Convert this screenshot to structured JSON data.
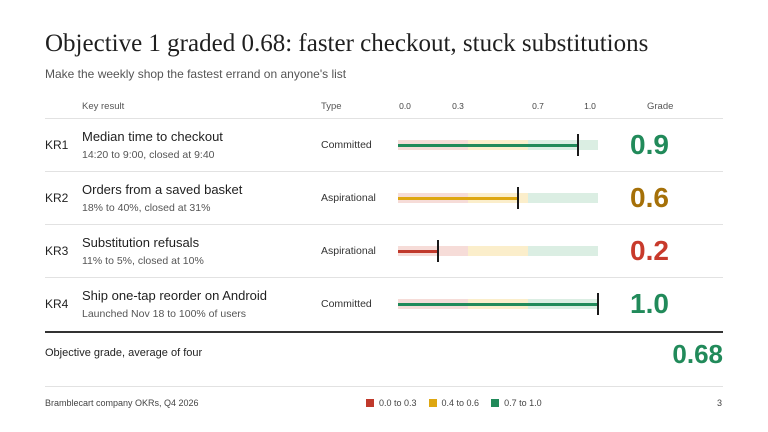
{
  "header": {
    "title": "Objective 1 graded 0.68: faster checkout, stuck substitutions",
    "subtitle": "Make the weekly shop the fastest errand on anyone's list"
  },
  "columns": {
    "key_result": "Key result",
    "type": "Type",
    "grade": "Grade",
    "scale_ticks": [
      "0.0",
      "0.3",
      "0.7",
      "1.0"
    ]
  },
  "colors": {
    "red": "#c0392b",
    "amber": "#dea711",
    "green": "#218a5a",
    "band_red": "#f6dcd8",
    "band_amber": "#fbeecb",
    "band_green": "#dbeee3",
    "grade_red": "#c83a2b",
    "grade_amber": "#a57008",
    "grade_green": "#218a5a"
  },
  "key_results": [
    {
      "id": "KR1",
      "name": "Median time to checkout",
      "detail": "14:20 to 9:00, closed at 9:40",
      "type": "Committed",
      "grade": "0.9",
      "score": 0.9,
      "tier": "green"
    },
    {
      "id": "KR2",
      "name": "Orders from a saved basket",
      "detail": "18% to 40%, closed at 31%",
      "type": "Aspirational",
      "grade": "0.6",
      "score": 0.6,
      "tier": "amber"
    },
    {
      "id": "KR3",
      "name": "Substitution refusals",
      "detail": "11% to 5%, closed at 10%",
      "type": "Aspirational",
      "grade": "0.2",
      "score": 0.2,
      "tier": "red"
    },
    {
      "id": "KR4",
      "name": "Ship one-tap reorder on Android",
      "detail": "Launched Nov 18 to 100% of users",
      "type": "Committed",
      "grade": "1.0",
      "score": 1.0,
      "tier": "green"
    }
  ],
  "summary": {
    "label": "Objective grade, average of four",
    "value": "0.68"
  },
  "footer": {
    "source": "Bramblecart company OKRs, Q4 2026",
    "page": "3"
  },
  "legend": [
    {
      "label": "0.0 to 0.3",
      "tier": "red"
    },
    {
      "label": "0.4 to 0.6",
      "tier": "amber"
    },
    {
      "label": "0.7 to 1.0",
      "tier": "green"
    }
  ]
}
